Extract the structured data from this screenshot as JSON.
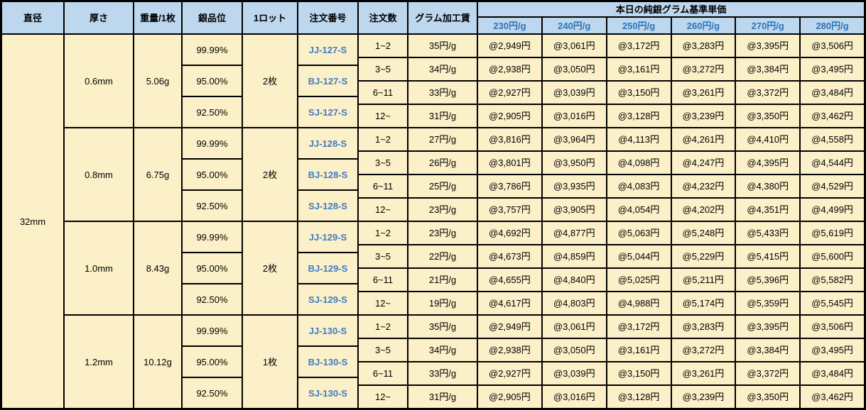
{
  "table": {
    "headers": {
      "diameter": "直径",
      "thickness": "厚さ",
      "weight": "重量/1枚",
      "purity": "銀品位",
      "lot": "1ロット",
      "order_no": "注文番号",
      "order_qty": "注文数",
      "fee": "グラム加工賃",
      "price_group": "本日の純銀グラム基準単価",
      "price_tiers": [
        "230円/g",
        "240円/g",
        "250円/g",
        "260円/g",
        "270円/g",
        "280円/g"
      ]
    },
    "diameter_value": "32mm",
    "groups": [
      {
        "thickness": "0.6mm",
        "weight": "5.06g",
        "lot": "2枚",
        "purities": [
          "99.99%",
          "95.00%",
          "92.50%"
        ],
        "order_numbers": [
          "JJ-127-S",
          "BJ-127-S",
          "SJ-127-S"
        ],
        "rows": [
          {
            "qty": "1~2",
            "fee": "35円/g",
            "prices": [
              "@2,949円",
              "@3,061円",
              "@3,172円",
              "@3,283円",
              "@3,395円",
              "@3,506円"
            ]
          },
          {
            "qty": "3~5",
            "fee": "34円/g",
            "prices": [
              "@2,938円",
              "@3,050円",
              "@3,161円",
              "@3,272円",
              "@3,384円",
              "@3,495円"
            ]
          },
          {
            "qty": "6~11",
            "fee": "33円/g",
            "prices": [
              "@2,927円",
              "@3,039円",
              "@3,150円",
              "@3,261円",
              "@3,372円",
              "@3,484円"
            ]
          },
          {
            "qty": "12~",
            "fee": "31円/g",
            "prices": [
              "@2,905円",
              "@3,016円",
              "@3,128円",
              "@3,239円",
              "@3,350円",
              "@3,462円"
            ]
          }
        ]
      },
      {
        "thickness": "0.8mm",
        "weight": "6.75g",
        "lot": "2枚",
        "purities": [
          "99.99%",
          "95.00%",
          "92.50%"
        ],
        "order_numbers": [
          "JJ-128-S",
          "BJ-128-S",
          "SJ-128-S"
        ],
        "rows": [
          {
            "qty": "1~2",
            "fee": "27円/g",
            "prices": [
              "@3,816円",
              "@3,964円",
              "@4,113円",
              "@4,261円",
              "@4,410円",
              "@4,558円"
            ]
          },
          {
            "qty": "3~5",
            "fee": "26円/g",
            "prices": [
              "@3,801円",
              "@3,950円",
              "@4,098円",
              "@4,247円",
              "@4,395円",
              "@4,544円"
            ]
          },
          {
            "qty": "6~11",
            "fee": "25円/g",
            "prices": [
              "@3,786円",
              "@3,935円",
              "@4,083円",
              "@4,232円",
              "@4,380円",
              "@4,529円"
            ]
          },
          {
            "qty": "12~",
            "fee": "23円/g",
            "prices": [
              "@3,757円",
              "@3,905円",
              "@4,054円",
              "@4,202円",
              "@4,351円",
              "@4,499円"
            ]
          }
        ]
      },
      {
        "thickness": "1.0mm",
        "weight": "8.43g",
        "lot": "2枚",
        "purities": [
          "99.99%",
          "95.00%",
          "92.50%"
        ],
        "order_numbers": [
          "JJ-129-S",
          "BJ-129-S",
          "SJ-129-S"
        ],
        "rows": [
          {
            "qty": "1~2",
            "fee": "23円/g",
            "prices": [
              "@4,692円",
              "@4,877円",
              "@5,063円",
              "@5,248円",
              "@5,433円",
              "@5,619円"
            ]
          },
          {
            "qty": "3~5",
            "fee": "22円/g",
            "prices": [
              "@4,673円",
              "@4,859円",
              "@5,044円",
              "@5,229円",
              "@5,415円",
              "@5,600円"
            ]
          },
          {
            "qty": "6~11",
            "fee": "21円/g",
            "prices": [
              "@4,655円",
              "@4,840円",
              "@5,025円",
              "@5,211円",
              "@5,396円",
              "@5,582円"
            ]
          },
          {
            "qty": "12~",
            "fee": "19円/g",
            "prices": [
              "@4,617円",
              "@4,803円",
              "@4,988円",
              "@5,174円",
              "@5,359円",
              "@5,545円"
            ]
          }
        ]
      },
      {
        "thickness": "1.2mm",
        "weight": "10.12g",
        "lot": "1枚",
        "purities": [
          "99.99%",
          "95.00%",
          "92.50%"
        ],
        "order_numbers": [
          "JJ-130-S",
          "BJ-130-S",
          "SJ-130-S"
        ],
        "rows": [
          {
            "qty": "1~2",
            "fee": "35円/g",
            "prices": [
              "@2,949円",
              "@3,061円",
              "@3,172円",
              "@3,283円",
              "@3,395円",
              "@3,506円"
            ]
          },
          {
            "qty": "3~5",
            "fee": "34円/g",
            "prices": [
              "@2,938円",
              "@3,050円",
              "@3,161円",
              "@3,272円",
              "@3,384円",
              "@3,495円"
            ]
          },
          {
            "qty": "6~11",
            "fee": "33円/g",
            "prices": [
              "@2,927円",
              "@3,039円",
              "@3,150円",
              "@3,261円",
              "@3,372円",
              "@3,484円"
            ]
          },
          {
            "qty": "12~",
            "fee": "31円/g",
            "prices": [
              "@2,905円",
              "@3,016円",
              "@3,128円",
              "@3,239円",
              "@3,350円",
              "@3,462円"
            ]
          }
        ]
      }
    ]
  },
  "colors": {
    "header_bg": "#BDD7EE",
    "body_bg": "#FCF0C8",
    "tier_text": "#2E75B6",
    "order_link_text": "#3E7CC7",
    "grid_line": "#000000"
  }
}
